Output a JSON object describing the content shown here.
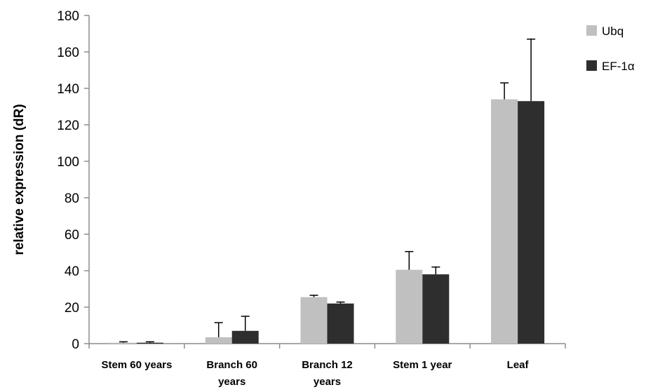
{
  "chart_data": {
    "type": "bar",
    "title": "",
    "xlabel": "",
    "ylabel": "relative expression (dR)",
    "ylim": [
      0,
      180
    ],
    "yticks": [
      0,
      20,
      40,
      60,
      80,
      100,
      120,
      140,
      160,
      180
    ],
    "categories": [
      [
        "Stem 60 years"
      ],
      [
        "Branch 60",
        "years"
      ],
      [
        "Branch 12",
        "years"
      ],
      [
        "Stem 1 year"
      ],
      [
        "Leaf"
      ]
    ],
    "series": [
      {
        "name": "Ubq",
        "color": "#c0c0c0",
        "values": [
          0.5,
          3.5,
          25.5,
          40.5,
          134
        ],
        "errors": [
          0.5,
          8,
          1,
          10,
          9
        ]
      },
      {
        "name": "EF-1α",
        "color": "#2e2e2e",
        "values": [
          0.5,
          7,
          22,
          38,
          133
        ],
        "errors": [
          0.5,
          8,
          0.8,
          4,
          34
        ]
      }
    ],
    "legend_position": "top-right",
    "grid": false
  }
}
